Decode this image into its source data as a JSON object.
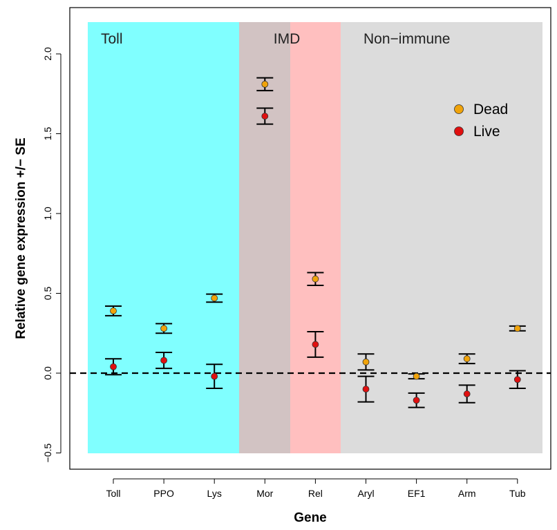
{
  "chart_data": {
    "type": "scatter",
    "title": "",
    "xlabel": "Gene",
    "ylabel": "Relative gene expression +/− SE",
    "ylim": [
      -0.5,
      2.2
    ],
    "yticks": [
      -0.5,
      0.0,
      0.5,
      1.0,
      1.5,
      2.0
    ],
    "ytick_labels": [
      "−0.5",
      "0.0",
      "0.5",
      "1.0",
      "1.5",
      "2.0"
    ],
    "categories": [
      "Toll",
      "PPO",
      "Lys",
      "Mor",
      "Rel",
      "Aryl",
      "EF1",
      "Arm",
      "Tub"
    ],
    "reference_line": 0.0,
    "regions": [
      {
        "label": "Toll",
        "from": "Toll",
        "to": "Lys",
        "color": "#80ffff"
      },
      {
        "label": "",
        "from": "Mor",
        "to": "Mor",
        "color": "#d2c3c3"
      },
      {
        "label": "IMD",
        "from": "Mor",
        "to": "Rel",
        "color": "#ffbfbf"
      },
      {
        "label": "Non−immune",
        "from": "Aryl",
        "to": "Tub",
        "color": "#dcdcdc"
      }
    ],
    "series": [
      {
        "name": "Dead",
        "color": "#f0a30a",
        "values": [
          0.39,
          0.28,
          0.47,
          1.81,
          0.59,
          0.07,
          -0.02,
          0.09,
          0.28
        ],
        "se": [
          0.03,
          0.03,
          0.025,
          0.04,
          0.04,
          0.05,
          0.015,
          0.03,
          0.015
        ]
      },
      {
        "name": "Live",
        "color": "#e01010",
        "values": [
          0.04,
          0.08,
          -0.02,
          1.61,
          0.18,
          -0.1,
          -0.17,
          -0.13,
          -0.04
        ],
        "se": [
          0.05,
          0.05,
          0.075,
          0.05,
          0.08,
          0.08,
          0.045,
          0.055,
          0.055
        ]
      }
    ],
    "legend": {
      "position": "top-right",
      "entries": [
        "Dead",
        "Live"
      ]
    },
    "grid": false
  }
}
